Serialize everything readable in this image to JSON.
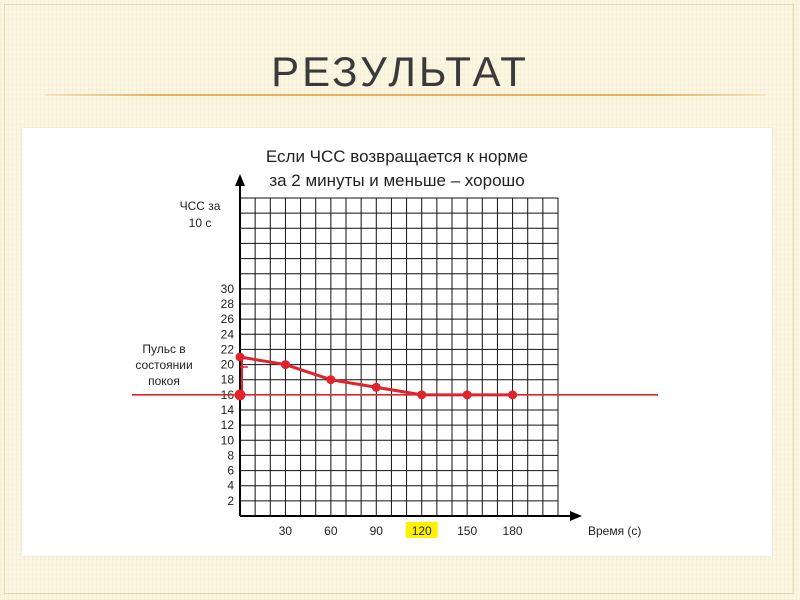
{
  "slide": {
    "title": "РЕЗУЛЬТАТ"
  },
  "chart_data": {
    "type": "line",
    "title_lines": [
      "Если ЧСС возвращается к норме",
      "за 2 минуты и меньше – хорошо"
    ],
    "ylabel_lines": [
      "ЧСС за",
      "10 с"
    ],
    "xlabel": "Время (с)",
    "y_ticks": [
      2,
      4,
      6,
      8,
      10,
      12,
      14,
      16,
      18,
      20,
      22,
      24,
      26,
      28,
      30
    ],
    "x_ticks": [
      30,
      60,
      90,
      120,
      150,
      180
    ],
    "highlighted_x_tick": 120,
    "xlim": [
      0,
      210
    ],
    "ylim": [
      0,
      42
    ],
    "grid": true,
    "series": [
      {
        "x": [
          0,
          30,
          60,
          90,
          120,
          150,
          180
        ],
        "values": [
          21,
          20,
          18,
          17,
          16,
          16,
          16
        ],
        "color": "#e0242b"
      }
    ],
    "reference_line": {
      "label_lines": [
        "Пульс в",
        "состоянии",
        "покоя"
      ],
      "y": 16,
      "color": "#e0242b"
    },
    "baseline_marker": {
      "x": 0,
      "y": 16
    }
  }
}
